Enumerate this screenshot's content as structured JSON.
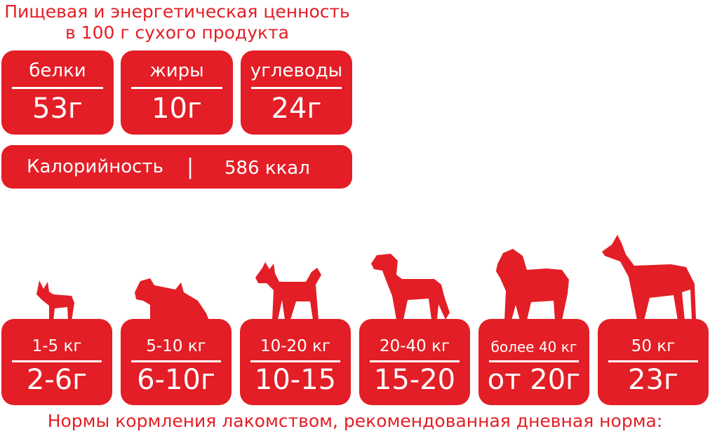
{
  "header": {
    "line1": "Пищевая и энергетическая ценность",
    "line2": "в 100 г сухого продукта"
  },
  "nutrients": [
    {
      "label": "белки",
      "value": "53г"
    },
    {
      "label": "жиры",
      "value": "10г"
    },
    {
      "label": "углеводы",
      "value": "24г"
    }
  ],
  "calories": {
    "label": "Калорийность",
    "separator": "|",
    "value": "586 ккал"
  },
  "feeding": [
    {
      "weight": "1-5 кг",
      "dose": "2-6г",
      "icon": "chihuahua-icon"
    },
    {
      "weight": "5-10 кг",
      "dose": "6-10г",
      "icon": "terrier-icon"
    },
    {
      "weight": "10-20 кг",
      "dose": "10-15",
      "icon": "husky-icon"
    },
    {
      "weight": "20-40 кг",
      "dose": "15-20",
      "icon": "rottweiler-icon"
    },
    {
      "weight": "более 40 кг",
      "dose": "от 20г",
      "icon": "chow-chow-icon"
    },
    {
      "weight": "50 кг",
      "dose": "23г",
      "icon": "great-dane-icon"
    }
  ],
  "footer": "Нормы кормления лакомством, рекомендованная дневная норма:",
  "colors": {
    "accent": "#e31e26"
  }
}
